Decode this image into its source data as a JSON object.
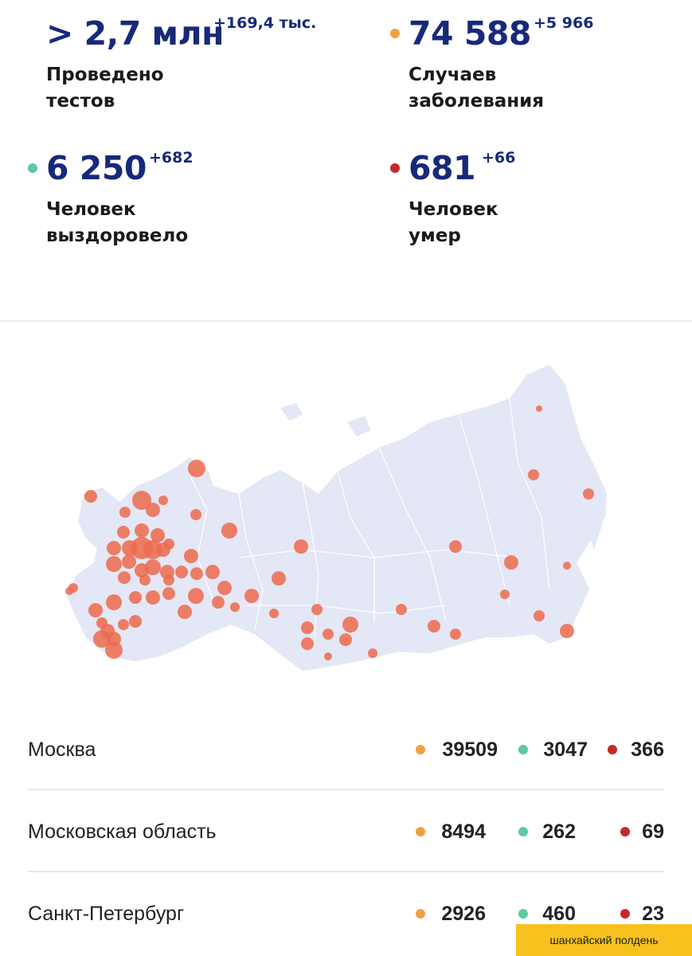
{
  "stats": {
    "tests": {
      "value": "> 2,7 млн",
      "delta": "+169,4 тыс.",
      "label_line1": "Проведено",
      "label_line2": "тестов"
    },
    "cases": {
      "value": "74 588",
      "delta": "+5 966",
      "label_line1": "Случаев",
      "label_line2": "заболевания"
    },
    "recovered": {
      "value": "6 250",
      "delta": "+682",
      "label_line1": "Человек",
      "label_line2": "выздоровело"
    },
    "deaths": {
      "value": "681",
      "delta": "+66",
      "label_line1": "Человек",
      "label_line2": "умер"
    }
  },
  "colors": {
    "cases": "#f0a040",
    "recovered": "#5cc9a0",
    "deaths": "#c62828",
    "value_text": "#17297a",
    "map_land": "#e4e7f5",
    "map_marker": "#ec6a4c",
    "badge": "#f7c21e"
  },
  "regions": [
    {
      "name": "Москва",
      "cases": "39509",
      "recovered": "3047",
      "deaths": "366"
    },
    {
      "name": "Московская область",
      "cases": "8494",
      "recovered": "262",
      "deaths": "69"
    },
    {
      "name": "Санкт-Петербург",
      "cases": "2926",
      "recovered": "460",
      "deaths": "23"
    }
  ],
  "map_icon": "russia-outline-map",
  "badge_text": "шанхайский полдень"
}
